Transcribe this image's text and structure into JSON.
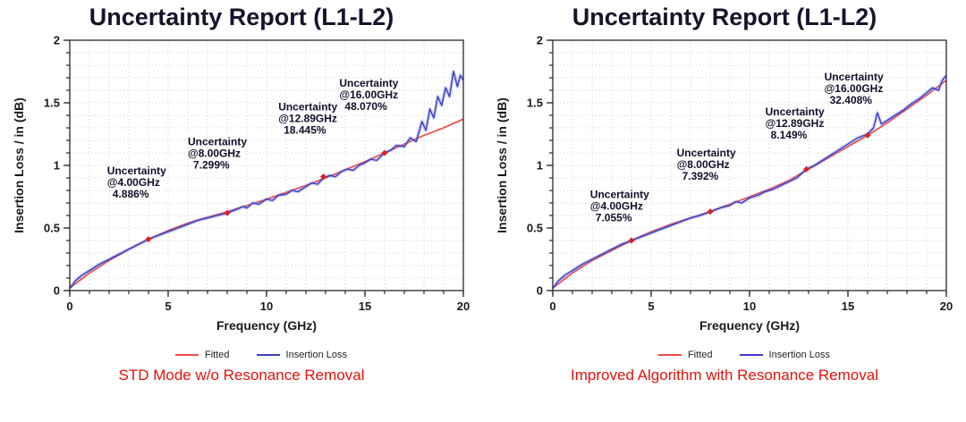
{
  "page": {
    "background": "#ffffff"
  },
  "chart_data": [
    {
      "type": "line",
      "title": "Uncertainty Report (L1-L2)",
      "caption": "STD Mode w/o Resonance Removal",
      "xlabel": "Frequency (GHz)",
      "ylabel": "Insertion Loss / in (dB)",
      "xlim": [
        0,
        20
      ],
      "ylim": [
        0,
        2
      ],
      "xticks": [
        {
          "v": 0,
          "label": "0"
        },
        {
          "v": 5,
          "label": "5"
        },
        {
          "v": 10,
          "label": "10"
        },
        {
          "v": 15,
          "label": "15"
        },
        {
          "v": 20,
          "label": "20"
        }
      ],
      "yticks": [
        {
          "v": 0,
          "label": "0"
        },
        {
          "v": 0.5,
          "label": "0.5"
        },
        {
          "v": 1,
          "label": "1"
        },
        {
          "v": 1.5,
          "label": "1.5"
        },
        {
          "v": 2,
          "label": "2"
        }
      ],
      "grid": {
        "on": true,
        "x_step": 1,
        "y_step": 0.1,
        "color": "#d0d0d0"
      },
      "legend_position": "bottom",
      "annotation_color": "#10102a",
      "marker_color": "#e01f1f",
      "annotations": [
        {
          "x": 1.9,
          "y": 0.93,
          "lines": [
            "Uncertainty",
            "@4.00GHz",
            "4.886%"
          ]
        },
        {
          "x": 6.0,
          "y": 1.16,
          "lines": [
            "Uncertainty",
            "@8.00GHz",
            "7.299%"
          ]
        },
        {
          "x": 10.6,
          "y": 1.44,
          "lines": [
            "Uncertainty",
            "@12.89GHz",
            "18.445%"
          ]
        },
        {
          "x": 13.7,
          "y": 1.63,
          "lines": [
            "Uncertainty",
            "@16.00GHz",
            "48.070%"
          ]
        }
      ],
      "markers": [
        [
          4,
          0.41
        ],
        [
          8,
          0.62
        ],
        [
          12.89,
          0.91
        ],
        [
          16,
          1.1
        ]
      ],
      "series": [
        {
          "name": "Fitted",
          "color": "#ee4b4b",
          "points": [
            [
              0,
              0.02
            ],
            [
              1,
              0.14
            ],
            [
              2,
              0.24
            ],
            [
              3,
              0.33
            ],
            [
              4,
              0.41
            ],
            [
              5,
              0.48
            ],
            [
              6,
              0.54
            ],
            [
              7,
              0.585
            ],
            [
              8,
              0.63
            ],
            [
              9,
              0.68
            ],
            [
              10,
              0.73
            ],
            [
              11,
              0.785
            ],
            [
              12,
              0.84
            ],
            [
              13,
              0.9
            ],
            [
              14,
              0.965
            ],
            [
              15,
              1.03
            ],
            [
              16,
              1.1
            ],
            [
              17,
              1.17
            ],
            [
              18,
              1.24
            ],
            [
              19,
              1.3
            ],
            [
              20,
              1.37
            ]
          ]
        },
        {
          "name": "Insertion Loss",
          "color": "#3d3dc4",
          "halo": "rgba(120,130,230,0.35)",
          "points": [
            [
              0,
              0.02
            ],
            [
              0.3,
              0.08
            ],
            [
              0.6,
              0.12
            ],
            [
              1,
              0.16
            ],
            [
              1.5,
              0.21
            ],
            [
              2,
              0.25
            ],
            [
              2.5,
              0.29
            ],
            [
              3,
              0.33
            ],
            [
              3.5,
              0.37
            ],
            [
              4,
              0.41
            ],
            [
              4.5,
              0.44
            ],
            [
              5,
              0.47
            ],
            [
              5.5,
              0.5
            ],
            [
              6,
              0.53
            ],
            [
              6.5,
              0.56
            ],
            [
              7,
              0.58
            ],
            [
              7.5,
              0.6
            ],
            [
              8,
              0.62
            ],
            [
              8.5,
              0.65
            ],
            [
              8.8,
              0.67
            ],
            [
              9,
              0.66
            ],
            [
              9.3,
              0.7
            ],
            [
              9.6,
              0.69
            ],
            [
              10,
              0.73
            ],
            [
              10.3,
              0.72
            ],
            [
              10.6,
              0.76
            ],
            [
              11,
              0.77
            ],
            [
              11.3,
              0.8
            ],
            [
              11.6,
              0.79
            ],
            [
              12,
              0.83
            ],
            [
              12.3,
              0.86
            ],
            [
              12.6,
              0.85
            ],
            [
              12.89,
              0.9
            ],
            [
              13.2,
              0.92
            ],
            [
              13.5,
              0.91
            ],
            [
              13.8,
              0.95
            ],
            [
              14.1,
              0.97
            ],
            [
              14.4,
              0.96
            ],
            [
              14.7,
              1.0
            ],
            [
              15,
              1.02
            ],
            [
              15.3,
              1.05
            ],
            [
              15.6,
              1.04
            ],
            [
              16,
              1.1
            ],
            [
              16.3,
              1.12
            ],
            [
              16.6,
              1.16
            ],
            [
              17,
              1.15
            ],
            [
              17.3,
              1.22
            ],
            [
              17.6,
              1.19
            ],
            [
              17.9,
              1.35
            ],
            [
              18.1,
              1.28
            ],
            [
              18.3,
              1.45
            ],
            [
              18.5,
              1.38
            ],
            [
              18.7,
              1.55
            ],
            [
              18.9,
              1.48
            ],
            [
              19.1,
              1.62
            ],
            [
              19.3,
              1.55
            ],
            [
              19.5,
              1.75
            ],
            [
              19.7,
              1.63
            ],
            [
              19.85,
              1.72
            ],
            [
              20,
              1.68
            ]
          ]
        }
      ]
    },
    {
      "type": "line",
      "title": "Uncertainty Report (L1-L2)",
      "caption": "Improved Algorithm with Resonance Removal",
      "xlabel": "Frequency (GHz)",
      "ylabel": "Insertion Loss / in (dB)",
      "xlim": [
        0,
        20
      ],
      "ylim": [
        0,
        2
      ],
      "xticks": [
        {
          "v": 0,
          "label": "0"
        },
        {
          "v": 5,
          "label": "5"
        },
        {
          "v": 10,
          "label": "10"
        },
        {
          "v": 15,
          "label": "15"
        },
        {
          "v": 20,
          "label": "20"
        }
      ],
      "yticks": [
        {
          "v": 0,
          "label": "0"
        },
        {
          "v": 0.5,
          "label": "0.5"
        },
        {
          "v": 1,
          "label": "1"
        },
        {
          "v": 1.5,
          "label": "1.5"
        },
        {
          "v": 2,
          "label": "2"
        }
      ],
      "grid": {
        "on": true,
        "x_step": 1,
        "y_step": 0.1,
        "color": "#d0d0d0"
      },
      "legend_position": "bottom",
      "annotation_color": "#10102a",
      "marker_color": "#e01f1f",
      "annotations": [
        {
          "x": 1.9,
          "y": 0.74,
          "lines": [
            "Uncertainty",
            "@4.00GHz",
            "7.055%"
          ]
        },
        {
          "x": 6.3,
          "y": 1.07,
          "lines": [
            "Uncertainty",
            "@8.00GHz",
            "7.392%"
          ]
        },
        {
          "x": 10.8,
          "y": 1.4,
          "lines": [
            "Uncertainty",
            "@12.89GHz",
            "8.149%"
          ]
        },
        {
          "x": 13.8,
          "y": 1.68,
          "lines": [
            "Uncertainty",
            "@16.00GHz",
            "32.408%"
          ]
        }
      ],
      "markers": [
        [
          4,
          0.4
        ],
        [
          8,
          0.63
        ],
        [
          12.89,
          0.97
        ],
        [
          16,
          1.24
        ]
      ],
      "series": [
        {
          "name": "Fitted",
          "color": "#ee4b4b",
          "points": [
            [
              0,
              0.02
            ],
            [
              1,
              0.14
            ],
            [
              2,
              0.24
            ],
            [
              3,
              0.32
            ],
            [
              4,
              0.4
            ],
            [
              5,
              0.47
            ],
            [
              6,
              0.53
            ],
            [
              7,
              0.58
            ],
            [
              8,
              0.63
            ],
            [
              9,
              0.69
            ],
            [
              10,
              0.75
            ],
            [
              11,
              0.81
            ],
            [
              12,
              0.88
            ],
            [
              13,
              0.97
            ],
            [
              14,
              1.06
            ],
            [
              15,
              1.15
            ],
            [
              16,
              1.24
            ],
            [
              17,
              1.34
            ],
            [
              18,
              1.45
            ],
            [
              19,
              1.56
            ],
            [
              20,
              1.68
            ]
          ]
        },
        {
          "name": "Insertion Loss",
          "color": "#3d3dc4",
          "halo": "rgba(120,130,230,0.35)",
          "points": [
            [
              0,
              0.02
            ],
            [
              0.3,
              0.08
            ],
            [
              0.6,
              0.12
            ],
            [
              1,
              0.16
            ],
            [
              1.5,
              0.21
            ],
            [
              2,
              0.25
            ],
            [
              2.5,
              0.29
            ],
            [
              3,
              0.33
            ],
            [
              3.5,
              0.37
            ],
            [
              4,
              0.4
            ],
            [
              4.5,
              0.43
            ],
            [
              5,
              0.46
            ],
            [
              5.5,
              0.49
            ],
            [
              6,
              0.52
            ],
            [
              6.5,
              0.55
            ],
            [
              7,
              0.58
            ],
            [
              7.5,
              0.6
            ],
            [
              8,
              0.63
            ],
            [
              8.5,
              0.66
            ],
            [
              9,
              0.68
            ],
            [
              9.3,
              0.71
            ],
            [
              9.6,
              0.7
            ],
            [
              10,
              0.74
            ],
            [
              10.4,
              0.76
            ],
            [
              10.8,
              0.79
            ],
            [
              11.2,
              0.81
            ],
            [
              11.6,
              0.84
            ],
            [
              12,
              0.87
            ],
            [
              12.4,
              0.9
            ],
            [
              12.89,
              0.97
            ],
            [
              13.3,
              1.0
            ],
            [
              13.7,
              1.04
            ],
            [
              14.1,
              1.08
            ],
            [
              14.5,
              1.12
            ],
            [
              15,
              1.17
            ],
            [
              15.5,
              1.22
            ],
            [
              16,
              1.25
            ],
            [
              16.3,
              1.3
            ],
            [
              16.5,
              1.42
            ],
            [
              16.7,
              1.33
            ],
            [
              17,
              1.36
            ],
            [
              17.4,
              1.4
            ],
            [
              17.8,
              1.44
            ],
            [
              18.2,
              1.49
            ],
            [
              18.6,
              1.53
            ],
            [
              19,
              1.58
            ],
            [
              19.3,
              1.62
            ],
            [
              19.6,
              1.6
            ],
            [
              19.8,
              1.68
            ],
            [
              20,
              1.72
            ]
          ]
        }
      ]
    }
  ]
}
